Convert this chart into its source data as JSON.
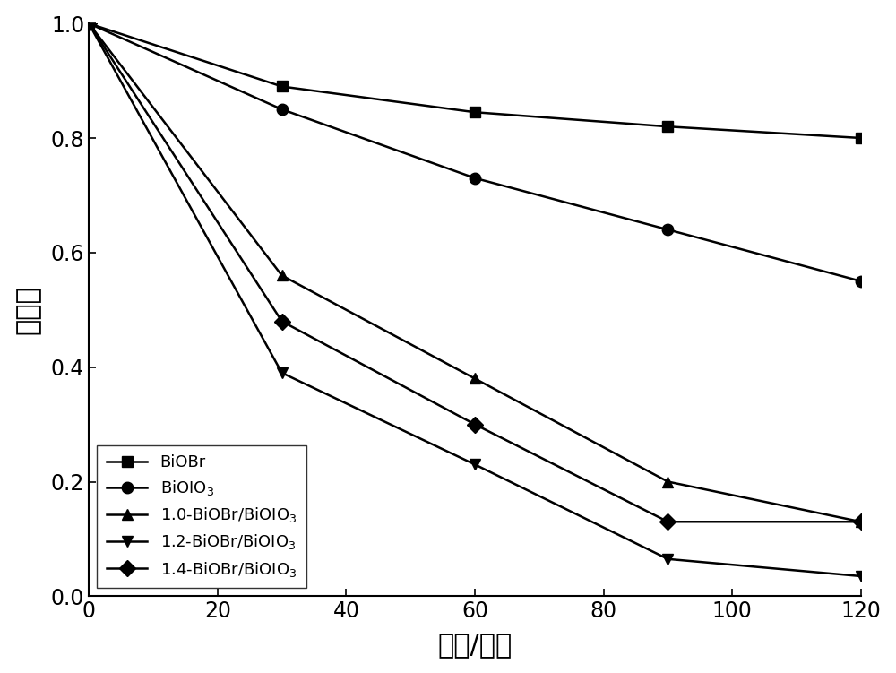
{
  "x": [
    0,
    30,
    60,
    90,
    120
  ],
  "series": [
    {
      "label": "BiOBr",
      "y": [
        1.0,
        0.89,
        0.845,
        0.82,
        0.8
      ],
      "marker": "s",
      "color": "#000000",
      "markersize": 9,
      "linewidth": 1.8
    },
    {
      "label": "BiOIO$_3$",
      "y": [
        1.0,
        0.85,
        0.73,
        0.64,
        0.55
      ],
      "marker": "o",
      "color": "#000000",
      "markersize": 9,
      "linewidth": 1.8
    },
    {
      "label": "1.0-BiOBr/BiOIO$_3$",
      "y": [
        1.0,
        0.56,
        0.38,
        0.2,
        0.13
      ],
      "marker": "^",
      "color": "#000000",
      "markersize": 9,
      "linewidth": 1.8
    },
    {
      "label": "1.2-BiOBr/BiOIO$_3$",
      "y": [
        1.0,
        0.39,
        0.23,
        0.065,
        0.035
      ],
      "marker": "v",
      "color": "#000000",
      "markersize": 9,
      "linewidth": 1.8
    },
    {
      "label": "1.4-BiOBr/BiOIO$_3$",
      "y": [
        1.0,
        0.48,
        0.3,
        0.13,
        0.13
      ],
      "marker": "D",
      "color": "#000000",
      "markersize": 9,
      "linewidth": 1.8
    }
  ],
  "xlabel": "时间/分钟",
  "ylabel": "浓度比",
  "xlim": [
    0,
    120
  ],
  "ylim": [
    0.0,
    1.0
  ],
  "xticks": [
    0,
    20,
    40,
    60,
    80,
    100,
    120
  ],
  "yticks": [
    0.0,
    0.2,
    0.4,
    0.6,
    0.8,
    1.0
  ],
  "legend_loc": "lower left",
  "legend_fontsize": 13,
  "axis_fontsize": 22,
  "tick_fontsize": 17,
  "figsize": [
    10.0,
    7.51
  ],
  "dpi": 100
}
